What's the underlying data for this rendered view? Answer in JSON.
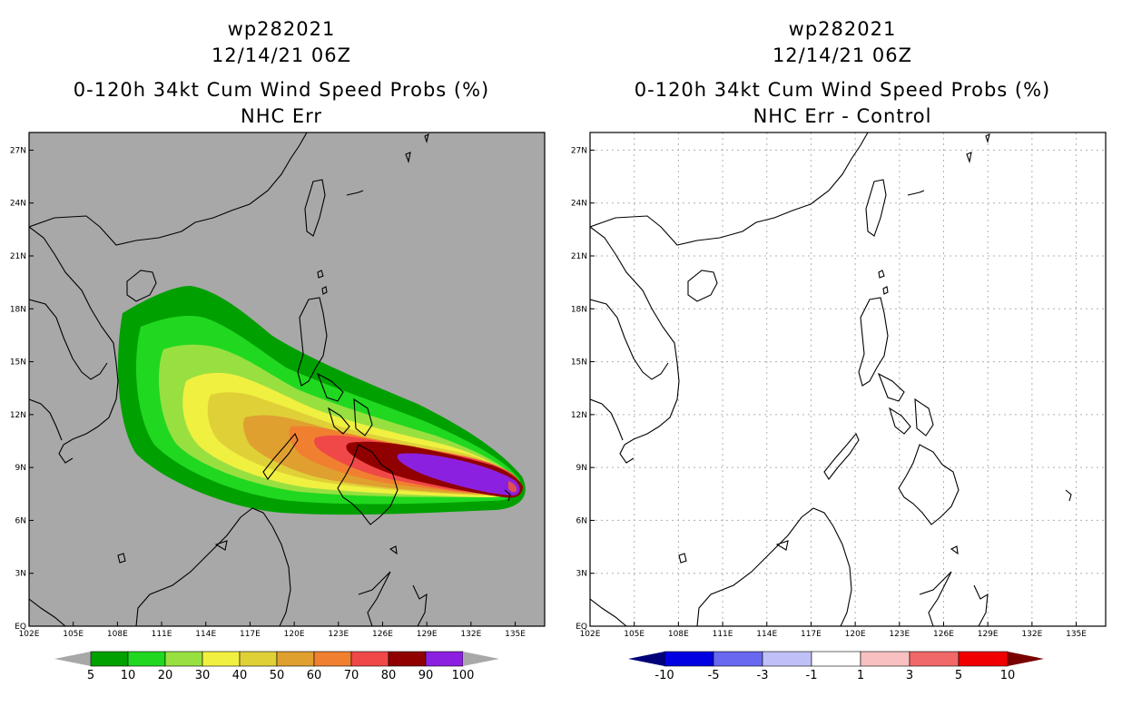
{
  "left_panel": {
    "storm_id": "wp282021",
    "datetime": "12/14/21 06Z",
    "product": "0-120h 34kt Cum Wind Speed Probs (%)",
    "subtitle": "NHC Err",
    "background": "#a8a8a8"
  },
  "right_panel": {
    "storm_id": "wp282021",
    "datetime": "12/14/21 06Z",
    "product": "0-120h 34kt Cum Wind Speed Probs (%)",
    "subtitle": "NHC Err - Control",
    "background": "#ffffff"
  },
  "axes": {
    "lon_min": 102,
    "lon_max": 137,
    "lat_min": 0,
    "lat_max": 28,
    "lon_ticks": [
      "102E",
      "105E",
      "108E",
      "111E",
      "114E",
      "117E",
      "120E",
      "123E",
      "126E",
      "129E",
      "132E",
      "135E"
    ],
    "lat_ticks": [
      "EQ",
      "3N",
      "6N",
      "9N",
      "12N",
      "15N",
      "18N",
      "21N",
      "24N",
      "27N"
    ],
    "lon_values": [
      102,
      105,
      108,
      111,
      114,
      117,
      120,
      123,
      126,
      129,
      132,
      135
    ],
    "lat_values": [
      0,
      3,
      6,
      9,
      12,
      15,
      18,
      21,
      24,
      27
    ]
  },
  "left_colorbar": {
    "labels": [
      "5",
      "10",
      "20",
      "30",
      "40",
      "50",
      "60",
      "70",
      "80",
      "90",
      "100"
    ],
    "colors": [
      "#00a000",
      "#20d820",
      "#98e040",
      "#f0f040",
      "#e0d038",
      "#e0a030",
      "#f08030",
      "#f04848",
      "#900000",
      "#8c20e0"
    ],
    "end_low": "#a8a8a8",
    "end_high": "#a8a8a8"
  },
  "right_colorbar": {
    "labels": [
      "-10",
      "-5",
      "-3",
      "-1",
      "1",
      "3",
      "5",
      "10"
    ],
    "colors": [
      "#0000e0",
      "#6868f0",
      "#c0c0f8",
      "#ffffff",
      "#f8c0c0",
      "#f06868",
      "#f00000"
    ],
    "end_low": "#00007a",
    "end_high": "#7a0000"
  },
  "probability_bands": [
    {
      "level": 5,
      "color": "#00a000"
    },
    {
      "level": 10,
      "color": "#20d820"
    },
    {
      "level": 20,
      "color": "#98e040"
    },
    {
      "level": 30,
      "color": "#f0f040"
    },
    {
      "level": 40,
      "color": "#e0d038"
    },
    {
      "level": 50,
      "color": "#e0a030"
    },
    {
      "level": 60,
      "color": "#f08030"
    },
    {
      "level": 70,
      "color": "#f04848"
    },
    {
      "level": 80,
      "color": "#900000"
    },
    {
      "level": 90,
      "color": "#8c20e0"
    }
  ]
}
